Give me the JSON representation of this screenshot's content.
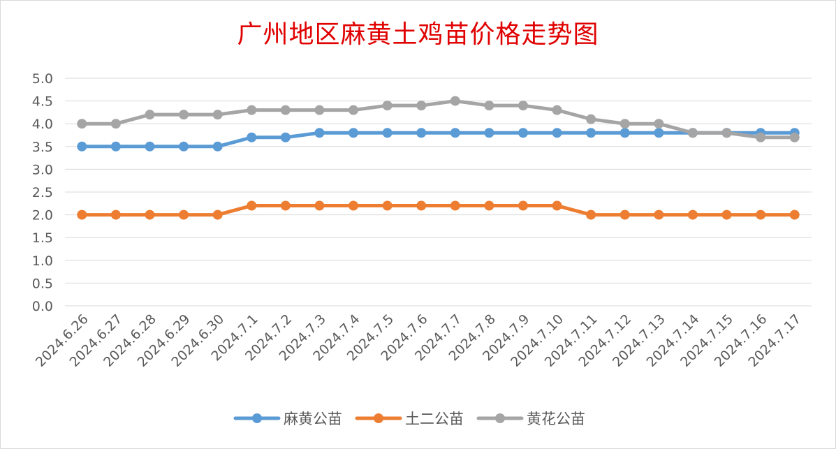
{
  "chart_data": {
    "type": "line",
    "title": "广州地区麻黄土鸡苗价格走势图",
    "categories": [
      "2024.6.26",
      "2024.6.27",
      "2024.6.28",
      "2024.6.29",
      "2024.6.30",
      "2024.7.1",
      "2024.7.2",
      "2024.7.3",
      "2024.7.4",
      "2024.7.5",
      "2024.7.6",
      "2024.7.7",
      "2024.7.8",
      "2024.7.9",
      "2024.7.10",
      "2024.7.11",
      "2024.7.12",
      "2024.7.13",
      "2024.7.14",
      "2024.7.15",
      "2024.7.16",
      "2024.7.17"
    ],
    "y_ticks": [
      "0.0",
      "0.5",
      "1.0",
      "1.5",
      "2.0",
      "2.5",
      "3.0",
      "3.5",
      "4.0",
      "4.5",
      "5.0"
    ],
    "ylim": [
      0,
      5
    ],
    "grid": "horizontal",
    "legend_position": "bottom",
    "series": [
      {
        "name": "麻黄公苗",
        "color": "#5b9bd5",
        "values": [
          3.5,
          3.5,
          3.5,
          3.5,
          3.5,
          3.7,
          3.7,
          3.8,
          3.8,
          3.8,
          3.8,
          3.8,
          3.8,
          3.8,
          3.8,
          3.8,
          3.8,
          3.8,
          3.8,
          3.8,
          3.8,
          3.8
        ]
      },
      {
        "name": "土二公苗",
        "color": "#ed7d31",
        "values": [
          2.0,
          2.0,
          2.0,
          2.0,
          2.0,
          2.2,
          2.2,
          2.2,
          2.2,
          2.2,
          2.2,
          2.2,
          2.2,
          2.2,
          2.2,
          2.0,
          2.0,
          2.0,
          2.0,
          2.0,
          2.0,
          2.0
        ]
      },
      {
        "name": "黄花公苗",
        "color": "#a5a5a5",
        "values": [
          4.0,
          4.0,
          4.2,
          4.2,
          4.2,
          4.3,
          4.3,
          4.3,
          4.3,
          4.4,
          4.4,
          4.5,
          4.4,
          4.4,
          4.3,
          4.1,
          4.0,
          4.0,
          3.8,
          3.8,
          3.7,
          3.7
        ]
      }
    ]
  }
}
